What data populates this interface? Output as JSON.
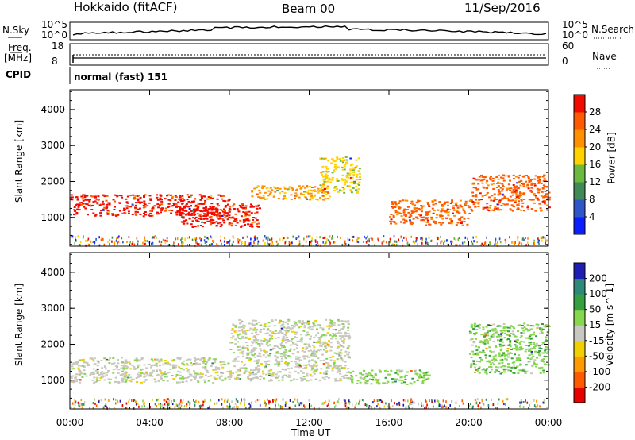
{
  "header": {
    "site": "Hokkaido (fitACF)",
    "beam": "Beam 00",
    "date": "11/Sep/2016"
  },
  "status_panel": {
    "nsky_label": "N.Sky",
    "nsky_ticks": [
      "10^5",
      "10^0"
    ],
    "nsearch_label": "N.Search",
    "freq_label_1": "Freq.",
    "freq_label_2": "[MHz]",
    "freq_ticks": [
      "18",
      "8"
    ],
    "nave_label": "Nave",
    "nave_ticks": [
      "60",
      "0"
    ],
    "cpid_label": "CPID",
    "cpid_value": "normal (fast) 151"
  },
  "chart_data": [
    {
      "type": "heatmap",
      "name": "Power",
      "ylabel": "Slant Range [km]",
      "xlabel": "",
      "y_ticks": [
        "1000",
        "2000",
        "3000",
        "4000"
      ],
      "ylim": [
        200,
        4550
      ],
      "colorbar": {
        "label": "Power [dB]",
        "ticks": [
          "4",
          "8",
          "12",
          "16",
          "20",
          "24",
          "28"
        ],
        "colors": [
          "#0a1eff",
          "#2f56c8",
          "#3f8a57",
          "#6bb93e",
          "#ffd200",
          "#ff9000",
          "#ff5a00",
          "#f20a00"
        ]
      },
      "echo_regions": [
        {
          "t_start": "00:00",
          "t_end": "08:00",
          "range_km": [
            1050,
            1650
          ],
          "level": "28 dB"
        },
        {
          "t_start": "05:30",
          "t_end": "09:30",
          "range_km": [
            750,
            1400
          ],
          "level": "28 dB"
        },
        {
          "t_start": "09:00",
          "t_end": "13:00",
          "range_km": [
            1500,
            1900
          ],
          "level": "20 dB"
        },
        {
          "t_start": "12:30",
          "t_end": "14:30",
          "range_km": [
            1700,
            2700
          ],
          "level": "16 dB"
        },
        {
          "t_start": "16:00",
          "t_end": "20:00",
          "range_km": [
            800,
            1500
          ],
          "level": "24 dB"
        },
        {
          "t_start": "20:00",
          "t_end": "24:00",
          "range_km": [
            1200,
            2200
          ],
          "level": "24 dB"
        }
      ]
    },
    {
      "type": "heatmap",
      "name": "Velocity",
      "ylabel": "Slant Range [km]",
      "xlabel": "Time UT",
      "x_ticks": [
        "00:00",
        "04:00",
        "08:00",
        "12:00",
        "16:00",
        "20:00",
        "00:00"
      ],
      "y_ticks": [
        "1000",
        "2000",
        "3000",
        "4000"
      ],
      "ylim": [
        200,
        4550
      ],
      "colorbar": {
        "label": "Velocity [m s^-1]",
        "ticks": [
          "200",
          "100",
          "50",
          "15",
          "-15",
          "-50",
          "-100",
          "-200"
        ],
        "colors": [
          "#1e1eb4",
          "#2e8a78",
          "#36a040",
          "#86d64e",
          "#c8c8c0",
          "#f0d000",
          "#ff9a00",
          "#ff5a00",
          "#e80000"
        ]
      },
      "echo_regions": [
        {
          "t_start": "00:00",
          "t_end": "08:00",
          "range_km": [
            950,
            1650
          ],
          "level": "-15 to 15 m/s"
        },
        {
          "t_start": "08:00",
          "t_end": "14:00",
          "range_km": [
            1000,
            2700
          ],
          "level": "-15 to 15 m/s"
        },
        {
          "t_start": "14:00",
          "t_end": "18:00",
          "range_km": [
            900,
            1300
          ],
          "level": "15 to 50 m/s"
        },
        {
          "t_start": "20:00",
          "t_end": "24:00",
          "range_km": [
            1200,
            2600
          ],
          "level": "15 to 50 m/s"
        }
      ]
    }
  ]
}
